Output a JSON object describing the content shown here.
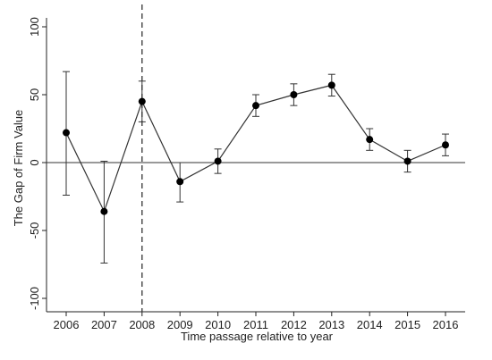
{
  "chart_data": {
    "type": "line",
    "title": "",
    "xlabel": "Time passage relative to year",
    "ylabel": "The Gap of Firm Value",
    "x": [
      2006,
      2007,
      2008,
      2009,
      2010,
      2011,
      2012,
      2013,
      2014,
      2015,
      2016
    ],
    "series": [
      {
        "values": [
          22,
          -36,
          45,
          -14,
          1,
          42,
          50,
          57,
          17,
          1,
          13
        ],
        "ci_lower": [
          -24,
          -74,
          30,
          -29,
          -8,
          34,
          42,
          49,
          9,
          -7,
          5
        ],
        "ci_upper": [
          67,
          1,
          60,
          0,
          10,
          50,
          58,
          65,
          25,
          9,
          21
        ]
      }
    ],
    "ylim": [
      -100,
      100
    ],
    "yticks": [
      -100,
      -50,
      0,
      50,
      100
    ],
    "reference_line_y": 0,
    "event_line_x": 2008,
    "grid": false,
    "line_color": "#333333",
    "marker_color": "#000000"
  }
}
